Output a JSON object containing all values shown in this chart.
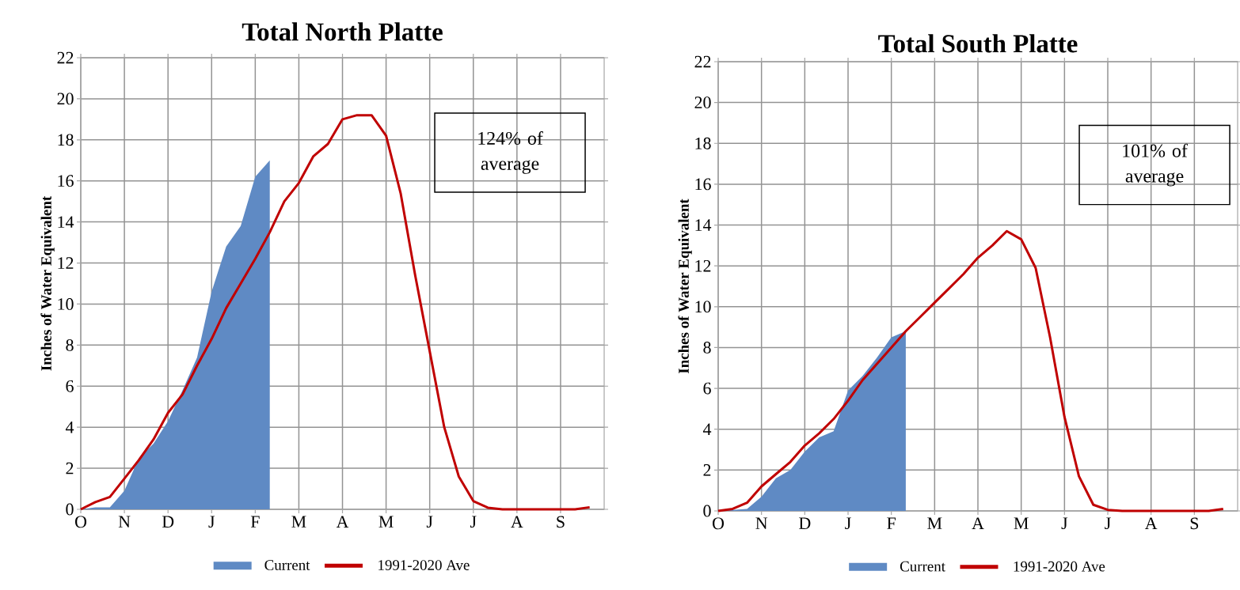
{
  "chart_data": [
    {
      "type": "area",
      "title": "Total North Platte",
      "ylabel": "Inches of Water Equivalent",
      "categories": [
        "O",
        null,
        null,
        "N",
        null,
        null,
        "D",
        null,
        null,
        "J",
        null,
        null,
        "F",
        null,
        null,
        "M",
        null,
        null,
        "A",
        null,
        null,
        "M",
        null,
        null,
        "J",
        null,
        null,
        "J",
        null,
        null,
        "A",
        null,
        null,
        "S",
        null,
        null
      ],
      "ylim": [
        0,
        22
      ],
      "yticks": [
        0,
        2,
        4,
        6,
        8,
        10,
        12,
        14,
        16,
        18,
        20,
        22
      ],
      "grid": true,
      "legend": "bottom",
      "annotations": [
        "124% of average"
      ],
      "series": [
        {
          "name": "Current",
          "color": "#5f8ac4",
          "values": [
            0,
            0.1,
            0.1,
            0.9,
            2.5,
            3.2,
            4.3,
            5.8,
            7.4,
            10.6,
            12.8,
            13.8,
            16.2,
            17.0,
            null,
            null,
            null,
            null,
            null,
            null,
            null,
            null,
            null,
            null,
            null,
            null,
            null,
            null,
            null,
            null,
            null,
            null,
            null,
            null,
            null,
            null
          ]
        },
        {
          "name": "1991-2020 Ave",
          "type": "line",
          "color": "#c00000",
          "values": [
            0,
            0.35,
            0.6,
            1.5,
            2.4,
            3.4,
            4.7,
            5.6,
            7.0,
            8.3,
            9.8,
            11.0,
            12.2,
            13.5,
            15.0,
            15.9,
            17.2,
            17.8,
            19.0,
            19.2,
            19.2,
            18.2,
            15.4,
            11.4,
            7.7,
            4.0,
            1.6,
            0.4,
            0.08,
            0,
            0,
            0,
            0,
            0,
            0,
            0.1
          ]
        }
      ]
    },
    {
      "type": "area",
      "title": "Total South Platte",
      "ylabel": "Inches of Water Equivalent",
      "categories": [
        "O",
        null,
        null,
        "N",
        null,
        null,
        "D",
        null,
        null,
        "J",
        null,
        null,
        "F",
        null,
        null,
        "M",
        null,
        null,
        "A",
        null,
        null,
        "M",
        null,
        null,
        "J",
        null,
        null,
        "J",
        null,
        null,
        "A",
        null,
        null,
        "S",
        null,
        null
      ],
      "ylim": [
        0,
        22
      ],
      "yticks": [
        0,
        2,
        4,
        6,
        8,
        10,
        12,
        14,
        16,
        18,
        20,
        22
      ],
      "grid": true,
      "legend": "bottom",
      "annotations": [
        "101% of average"
      ],
      "series": [
        {
          "name": "Current",
          "color": "#5f8ac4",
          "values": [
            0,
            0.05,
            0.1,
            0.7,
            1.6,
            2.0,
            2.9,
            3.6,
            3.9,
            5.9,
            6.6,
            7.5,
            8.5,
            8.8,
            null,
            null,
            null,
            null,
            null,
            null,
            null,
            null,
            null,
            null,
            null,
            null,
            null,
            null,
            null,
            null,
            null,
            null,
            null,
            null,
            null,
            null
          ]
        },
        {
          "name": "1991-2020 Ave",
          "type": "line",
          "color": "#c00000",
          "values": [
            0,
            0.1,
            0.4,
            1.2,
            1.8,
            2.4,
            3.2,
            3.8,
            4.5,
            5.4,
            6.4,
            7.2,
            8.0,
            8.8,
            9.5,
            10.2,
            10.9,
            11.6,
            12.4,
            13.0,
            13.7,
            13.3,
            11.9,
            8.5,
            4.6,
            1.7,
            0.3,
            0.05,
            0,
            0,
            0,
            0,
            0,
            0,
            0,
            0.1
          ]
        }
      ]
    }
  ]
}
